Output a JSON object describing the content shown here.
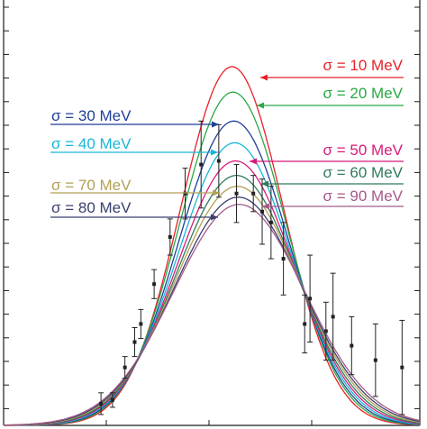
{
  "chart_data": {
    "type": "line",
    "title": "",
    "xlabel": "",
    "ylabel": "",
    "grid": false,
    "legend_placement": "inline annotations with arrows",
    "xlim": [
      0,
      470
    ],
    "ylim": [
      0,
      100
    ],
    "series": [
      {
        "name": "σ = 10 MeV",
        "color": "#e8202a",
        "peak_x": 258,
        "peak": 99,
        "width": 58
      },
      {
        "name": "σ = 20 MeV",
        "color": "#2aa845",
        "peak_x": 259,
        "peak": 92,
        "width": 60
      },
      {
        "name": "σ = 30 MeV",
        "color": "#1f3f98",
        "peak_x": 260,
        "peak": 84,
        "width": 62
      },
      {
        "name": "σ = 40 MeV",
        "color": "#17b6d8",
        "peak_x": 261,
        "peak": 78,
        "width": 64
      },
      {
        "name": "σ = 50 MeV",
        "color": "#d81b7a",
        "peak_x": 262,
        "peak": 73,
        "width": 66
      },
      {
        "name": "σ = 60 MeV",
        "color": "#2f7a5a",
        "peak_x": 263,
        "peak": 69,
        "width": 68
      },
      {
        "name": "σ = 70 MeV",
        "color": "#b3a055",
        "peak_x": 264,
        "peak": 66,
        "width": 70
      },
      {
        "name": "σ = 80 MeV",
        "color": "#3a3f6e",
        "peak_x": 265,
        "peak": 63,
        "width": 72
      },
      {
        "name": "σ = 90 MeV",
        "color": "#a45a8a",
        "peak_x": 266,
        "peak": 61,
        "width": 74
      }
    ],
    "measured": [
      {
        "x": 110,
        "y": 6,
        "err": 3
      },
      {
        "x": 123,
        "y": 7,
        "err": 2
      },
      {
        "x": 137,
        "y": 16,
        "err": 3
      },
      {
        "x": 148,
        "y": 23,
        "err": 4
      },
      {
        "x": 155,
        "y": 28,
        "err": 4
      },
      {
        "x": 170,
        "y": 39,
        "err": 4
      },
      {
        "x": 188,
        "y": 52,
        "err": 5
      },
      {
        "x": 205,
        "y": 64,
        "err": 7
      },
      {
        "x": 223,
        "y": 72,
        "err": 12
      },
      {
        "x": 243,
        "y": 73,
        "err": 10
      },
      {
        "x": 263,
        "y": 64,
        "err": 8
      },
      {
        "x": 282,
        "y": 64,
        "err": 5
      },
      {
        "x": 292,
        "y": 59,
        "err": 9
      },
      {
        "x": 302,
        "y": 56,
        "err": 10
      },
      {
        "x": 316,
        "y": 46,
        "err": 10
      },
      {
        "x": 340,
        "y": 28,
        "err": 8
      },
      {
        "x": 346,
        "y": 35,
        "err": 12
      },
      {
        "x": 364,
        "y": 26,
        "err": 8
      },
      {
        "x": 372,
        "y": 30,
        "err": 12
      },
      {
        "x": 393,
        "y": 22,
        "err": 8
      },
      {
        "x": 420,
        "y": 18,
        "err": 10
      },
      {
        "x": 450,
        "y": 16,
        "err": 13
      }
    ]
  },
  "colors": {
    "axis": "#1a1a1a",
    "marker": "#222222"
  }
}
